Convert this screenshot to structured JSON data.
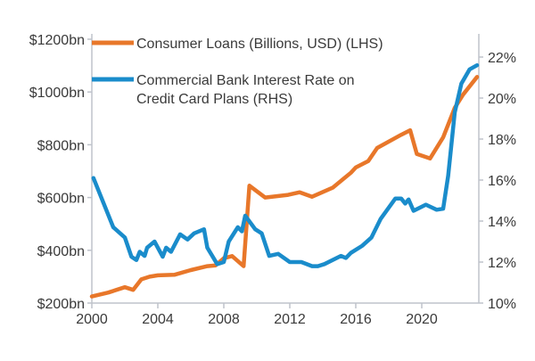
{
  "chart_data": {
    "type": "line",
    "x_ticks": [
      "2000",
      "2004",
      "2008",
      "2012",
      "2016",
      "2020"
    ],
    "xlim": [
      2000,
      2023.35
    ],
    "y_left": {
      "ylim": [
        200,
        1200
      ],
      "tick_labels": [
        "$200bn",
        "$400bn",
        "$600bn",
        "$800bn",
        "$1000bn",
        "$1200bn"
      ],
      "tick_values": [
        200,
        400,
        600,
        800,
        1000,
        1200
      ]
    },
    "y_right": {
      "ylim": [
        10,
        22.8
      ],
      "tick_labels": [
        "10%",
        "12%",
        "14%",
        "16%",
        "18%",
        "20%",
        "22%"
      ],
      "tick_values": [
        10,
        12,
        14,
        16,
        18,
        20,
        22
      ]
    },
    "grid": false,
    "legend_placement": "top-left",
    "series": [
      {
        "name": "Consumer Loans (Billions, USD) (LHS)",
        "axis": "left",
        "color": "#E8772A",
        "x": [
          2000,
          2001,
          2002,
          2002.5,
          2003,
          2003.5,
          2004,
          2005,
          2006,
          2007,
          2007.5,
          2008,
          2008.5,
          2009.2,
          2009.55,
          2010.5,
          2011.9,
          2012.6,
          2013.35,
          2014.6,
          2015.7,
          2016,
          2016.75,
          2017.3,
          2018.75,
          2019.3,
          2019.7,
          2020.5,
          2021.3,
          2022,
          2022.5,
          2023.35
        ],
        "y": [
          225,
          240,
          260,
          250,
          290,
          300,
          305,
          307,
          325,
          340,
          343,
          370,
          378,
          340,
          645,
          600,
          610,
          620,
          603,
          637,
          694,
          714,
          738,
          788,
          838,
          855,
          765,
          748,
          828,
          940,
          990,
          1057
        ]
      },
      {
        "name": "Commercial Bank Interest Rate on Credit Card Plans (RHS)",
        "name_lines": [
          "Commercial Bank Interest Rate on",
          "Credit Card Plans (RHS)"
        ],
        "axis": "right",
        "color": "#1A8CCB",
        "x": [
          2000.1,
          2001.3,
          2002,
          2002.4,
          2002.7,
          2002.9,
          2003.2,
          2003.35,
          2003.8,
          2004.3,
          2004.5,
          2004.8,
          2005.35,
          2005.8,
          2006.2,
          2006.8,
          2007.0,
          2007.6,
          2008.0,
          2008.3,
          2008.85,
          2009.1,
          2009.3,
          2009.9,
          2010.3,
          2010.75,
          2011.3,
          2012,
          2012.7,
          2013.35,
          2013.7,
          2014.1,
          2015.1,
          2015.4,
          2015.7,
          2016.4,
          2016.95,
          2017.5,
          2018.4,
          2018.75,
          2019.0,
          2019.2,
          2019.5,
          2020.25,
          2020.9,
          2021.3,
          2021.6,
          2022.0,
          2022.4,
          2022.9,
          2023.35
        ],
        "y": [
          16.1,
          13.7,
          13.2,
          12.26,
          12.1,
          12.5,
          12.3,
          12.7,
          13.0,
          12.26,
          12.7,
          12.5,
          13.35,
          13.1,
          13.4,
          13.6,
          12.7,
          11.9,
          12.0,
          13.0,
          13.7,
          13.5,
          14.26,
          13.6,
          13.4,
          12.3,
          12.4,
          12.0,
          12.0,
          11.8,
          11.8,
          11.9,
          12.3,
          12.2,
          12.45,
          12.8,
          13.2,
          14.1,
          15.1,
          15.1,
          14.85,
          15.05,
          14.5,
          14.8,
          14.55,
          14.6,
          16.2,
          19.3,
          20.7,
          21.4,
          21.6
        ]
      }
    ]
  }
}
